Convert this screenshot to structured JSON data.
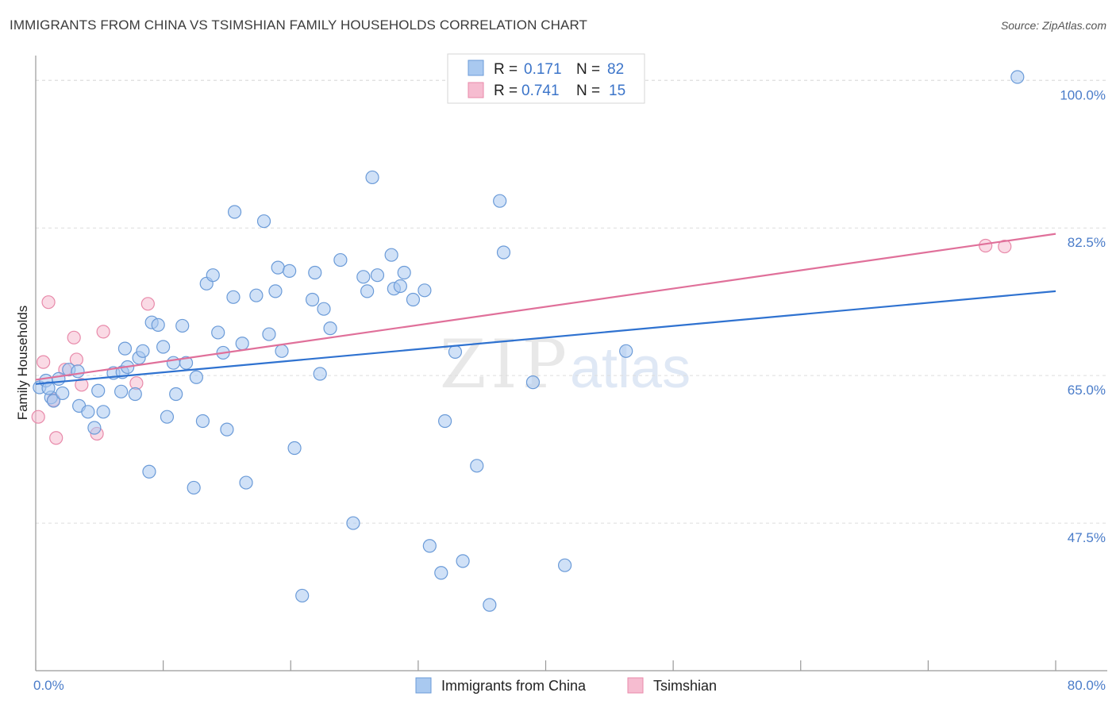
{
  "title": "IMMIGRANTS FROM CHINA VS TSIMSHIAN FAMILY HOUSEHOLDS CORRELATION CHART",
  "source": "Source: ZipAtlas.com",
  "watermark": {
    "zip": "ZIP",
    "atlas": "atlas"
  },
  "colors": {
    "china_fill": "#a9c9f0",
    "china_stroke": "#6b9bd8",
    "china_line": "#2f72d0",
    "tsim_fill": "#f6bcd0",
    "tsim_stroke": "#e88aaa",
    "tsim_line": "#e0709a",
    "grid": "#dedede",
    "tick_text": "#4a7cc9"
  },
  "chart_data": {
    "type": "scatter",
    "title": "IMMIGRANTS FROM CHINA VS TSIMSHIAN FAMILY HOUSEHOLDS CORRELATION CHART",
    "xlabel": "",
    "ylabel": "Family Households",
    "xlim": [
      0,
      80
    ],
    "ylim": [
      30,
      102
    ],
    "x_tick_labels": [
      "0.0%",
      "80.0%"
    ],
    "y_ticks": [
      47.5,
      65.0,
      82.5,
      100.0
    ],
    "y_tick_labels": [
      "47.5%",
      "65.0%",
      "82.5%",
      "100.0%"
    ],
    "legend": [
      {
        "series": "Immigrants from China",
        "r_label": "R =",
        "r_value": "0.171",
        "n_label": "N =",
        "n_value": "82"
      },
      {
        "series": "Tsimshian",
        "r_label": "R =",
        "r_value": "0.741",
        "n_label": "N =",
        "n_value": "15"
      }
    ],
    "series": [
      {
        "name": "Immigrants from China",
        "trendline": {
          "x": [
            0,
            80
          ],
          "y": [
            64.0,
            75.0
          ]
        },
        "points": [
          [
            0.3,
            63.6
          ],
          [
            0.8,
            64.4
          ],
          [
            1.2,
            62.4
          ],
          [
            1.4,
            62.0
          ],
          [
            1.8,
            64.6
          ],
          [
            2.1,
            62.9
          ],
          [
            2.6,
            65.7
          ],
          [
            3.3,
            65.5
          ],
          [
            3.4,
            61.4
          ],
          [
            4.1,
            60.7
          ],
          [
            4.6,
            58.8
          ],
          [
            4.9,
            63.2
          ],
          [
            5.3,
            60.7
          ],
          [
            6.1,
            65.3
          ],
          [
            6.7,
            63.1
          ],
          [
            6.8,
            65.4
          ],
          [
            7.0,
            68.2
          ],
          [
            7.2,
            66.0
          ],
          [
            7.8,
            62.8
          ],
          [
            8.1,
            67.1
          ],
          [
            8.4,
            67.9
          ],
          [
            8.9,
            53.6
          ],
          [
            9.1,
            71.3
          ],
          [
            9.6,
            71.0
          ],
          [
            10.0,
            68.4
          ],
          [
            10.3,
            60.1
          ],
          [
            10.8,
            66.5
          ],
          [
            11.0,
            62.8
          ],
          [
            11.5,
            70.9
          ],
          [
            11.8,
            66.5
          ],
          [
            12.4,
            51.7
          ],
          [
            12.6,
            64.8
          ],
          [
            13.1,
            59.6
          ],
          [
            13.4,
            75.9
          ],
          [
            13.9,
            76.9
          ],
          [
            14.3,
            70.1
          ],
          [
            14.7,
            67.7
          ],
          [
            15.0,
            58.6
          ],
          [
            15.5,
            74.3
          ],
          [
            15.6,
            84.4
          ],
          [
            16.2,
            68.8
          ],
          [
            16.5,
            52.3
          ],
          [
            17.3,
            74.5
          ],
          [
            17.9,
            83.3
          ],
          [
            18.3,
            69.9
          ],
          [
            18.8,
            75.0
          ],
          [
            19.0,
            77.8
          ],
          [
            19.3,
            67.9
          ],
          [
            19.9,
            77.4
          ],
          [
            20.3,
            56.4
          ],
          [
            21.7,
            74.0
          ],
          [
            21.9,
            77.2
          ],
          [
            20.9,
            38.9
          ],
          [
            22.3,
            65.2
          ],
          [
            22.6,
            72.9
          ],
          [
            23.1,
            70.6
          ],
          [
            23.9,
            78.7
          ],
          [
            24.9,
            47.5
          ],
          [
            25.7,
            76.7
          ],
          [
            26.0,
            75.0
          ],
          [
            26.4,
            88.5
          ],
          [
            26.8,
            76.9
          ],
          [
            27.9,
            79.3
          ],
          [
            28.1,
            75.3
          ],
          [
            28.6,
            75.6
          ],
          [
            28.9,
            77.2
          ],
          [
            29.6,
            74.0
          ],
          [
            30.5,
            75.1
          ],
          [
            30.9,
            44.8
          ],
          [
            31.8,
            41.6
          ],
          [
            32.1,
            59.6
          ],
          [
            32.9,
            67.8
          ],
          [
            33.5,
            43.0
          ],
          [
            34.6,
            54.3
          ],
          [
            35.6,
            37.8
          ],
          [
            36.4,
            85.7
          ],
          [
            36.7,
            79.6
          ],
          [
            39.0,
            64.2
          ],
          [
            41.5,
            42.5
          ],
          [
            46.3,
            67.9
          ],
          [
            77.0,
            100.4
          ],
          [
            1.0,
            63.5
          ]
        ]
      },
      {
        "name": "Tsimshian",
        "trendline": {
          "x": [
            0,
            80
          ],
          "y": [
            64.5,
            81.8
          ]
        },
        "points": [
          [
            0.2,
            60.1
          ],
          [
            0.6,
            66.6
          ],
          [
            1.0,
            73.7
          ],
          [
            1.4,
            62.1
          ],
          [
            1.6,
            57.6
          ],
          [
            2.3,
            65.7
          ],
          [
            3.0,
            69.5
          ],
          [
            3.2,
            66.9
          ],
          [
            3.6,
            63.9
          ],
          [
            4.8,
            58.1
          ],
          [
            5.3,
            70.2
          ],
          [
            7.9,
            64.1
          ],
          [
            8.8,
            73.5
          ],
          [
            74.5,
            80.4
          ],
          [
            76.0,
            80.3
          ]
        ]
      }
    ]
  },
  "bottom_legend": [
    "Immigrants from China",
    "Tsimshian"
  ]
}
